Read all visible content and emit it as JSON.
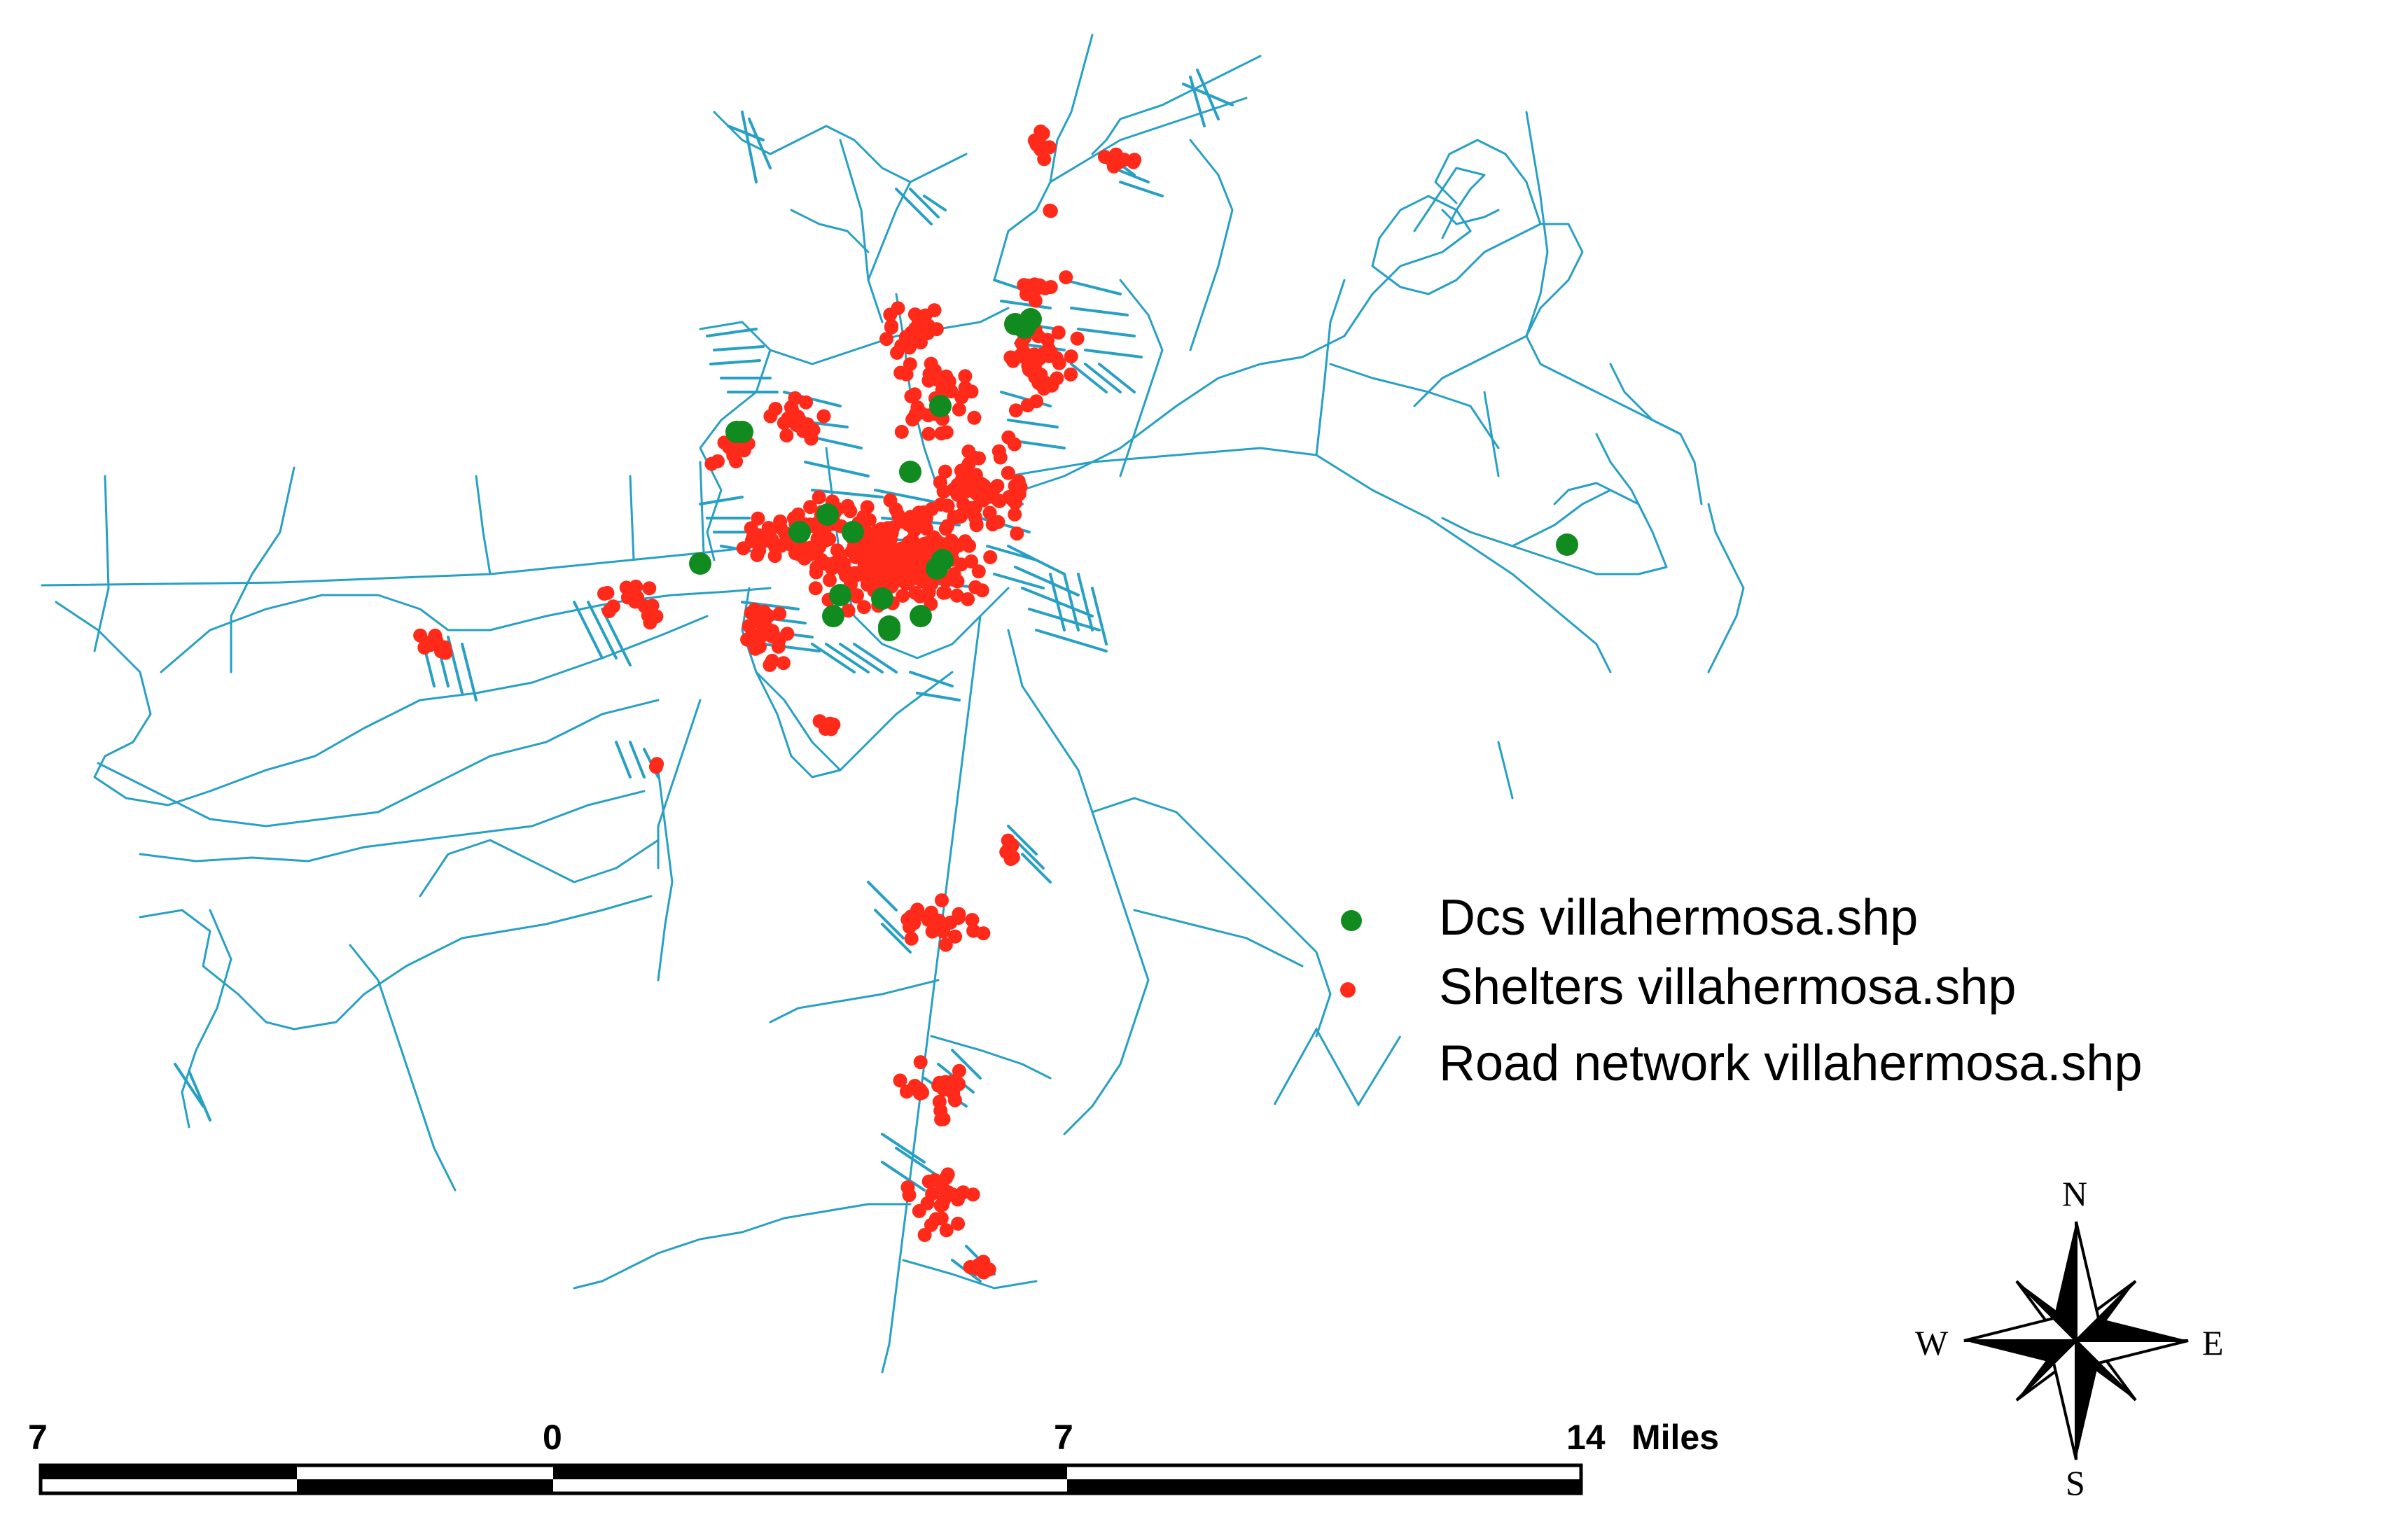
{
  "colors": {
    "road": "#27a0c4",
    "shelter": "#ff2a1a",
    "dc": "#118a1f",
    "text": "#000000"
  },
  "legend": {
    "dcs_label": "Dcs villahermosa.shp",
    "shelters_label": "Shelters villahermosa.shp",
    "roads_label": "Road network villahermosa.shp"
  },
  "scale_bar": {
    "labels": [
      "7",
      "0",
      "7",
      "14"
    ],
    "unit": "Miles"
  },
  "compass": {
    "north": "N",
    "south": "S",
    "east": "E",
    "west": "W"
  }
}
